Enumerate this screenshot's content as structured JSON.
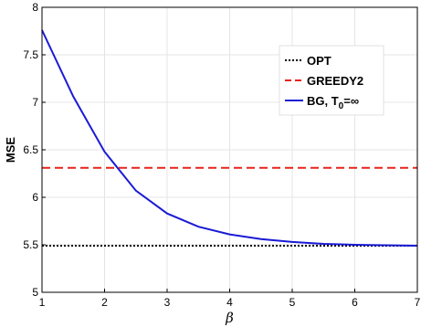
{
  "chart_data": {
    "type": "line",
    "title": "",
    "xlabel": "β",
    "ylabel": "MSE",
    "xlim": [
      1,
      7
    ],
    "ylim": [
      5,
      8
    ],
    "xticks": [
      "1",
      "2",
      "3",
      "4",
      "5",
      "6",
      "7"
    ],
    "yticks": [
      "5",
      "5.5",
      "6",
      "6.5",
      "7",
      "7.5",
      "8"
    ],
    "grid": true,
    "legend_position": "top-right",
    "x": [
      1,
      1.5,
      2,
      2.5,
      3,
      3.5,
      4,
      4.5,
      5,
      5.5,
      6,
      6.5,
      7
    ],
    "series": [
      {
        "name": "OPT",
        "color": "#000000",
        "style": "dotted",
        "values": [
          5.49,
          5.49,
          5.49,
          5.49,
          5.49,
          5.49,
          5.49,
          5.49,
          5.49,
          5.49,
          5.49,
          5.49,
          5.49
        ]
      },
      {
        "name": "GREEDY2",
        "color": "#e8221b",
        "style": "dashed",
        "values": [
          6.31,
          6.31,
          6.31,
          6.31,
          6.31,
          6.31,
          6.31,
          6.31,
          6.31,
          6.31,
          6.31,
          6.31,
          6.31
        ]
      },
      {
        "name": "BG, T",
        "sub": "0",
        "suffix": "=∞",
        "color": "#1a1ad6",
        "style": "solid",
        "values": [
          7.76,
          7.06,
          6.48,
          6.07,
          5.83,
          5.69,
          5.61,
          5.56,
          5.53,
          5.51,
          5.5,
          5.495,
          5.49
        ]
      }
    ]
  }
}
